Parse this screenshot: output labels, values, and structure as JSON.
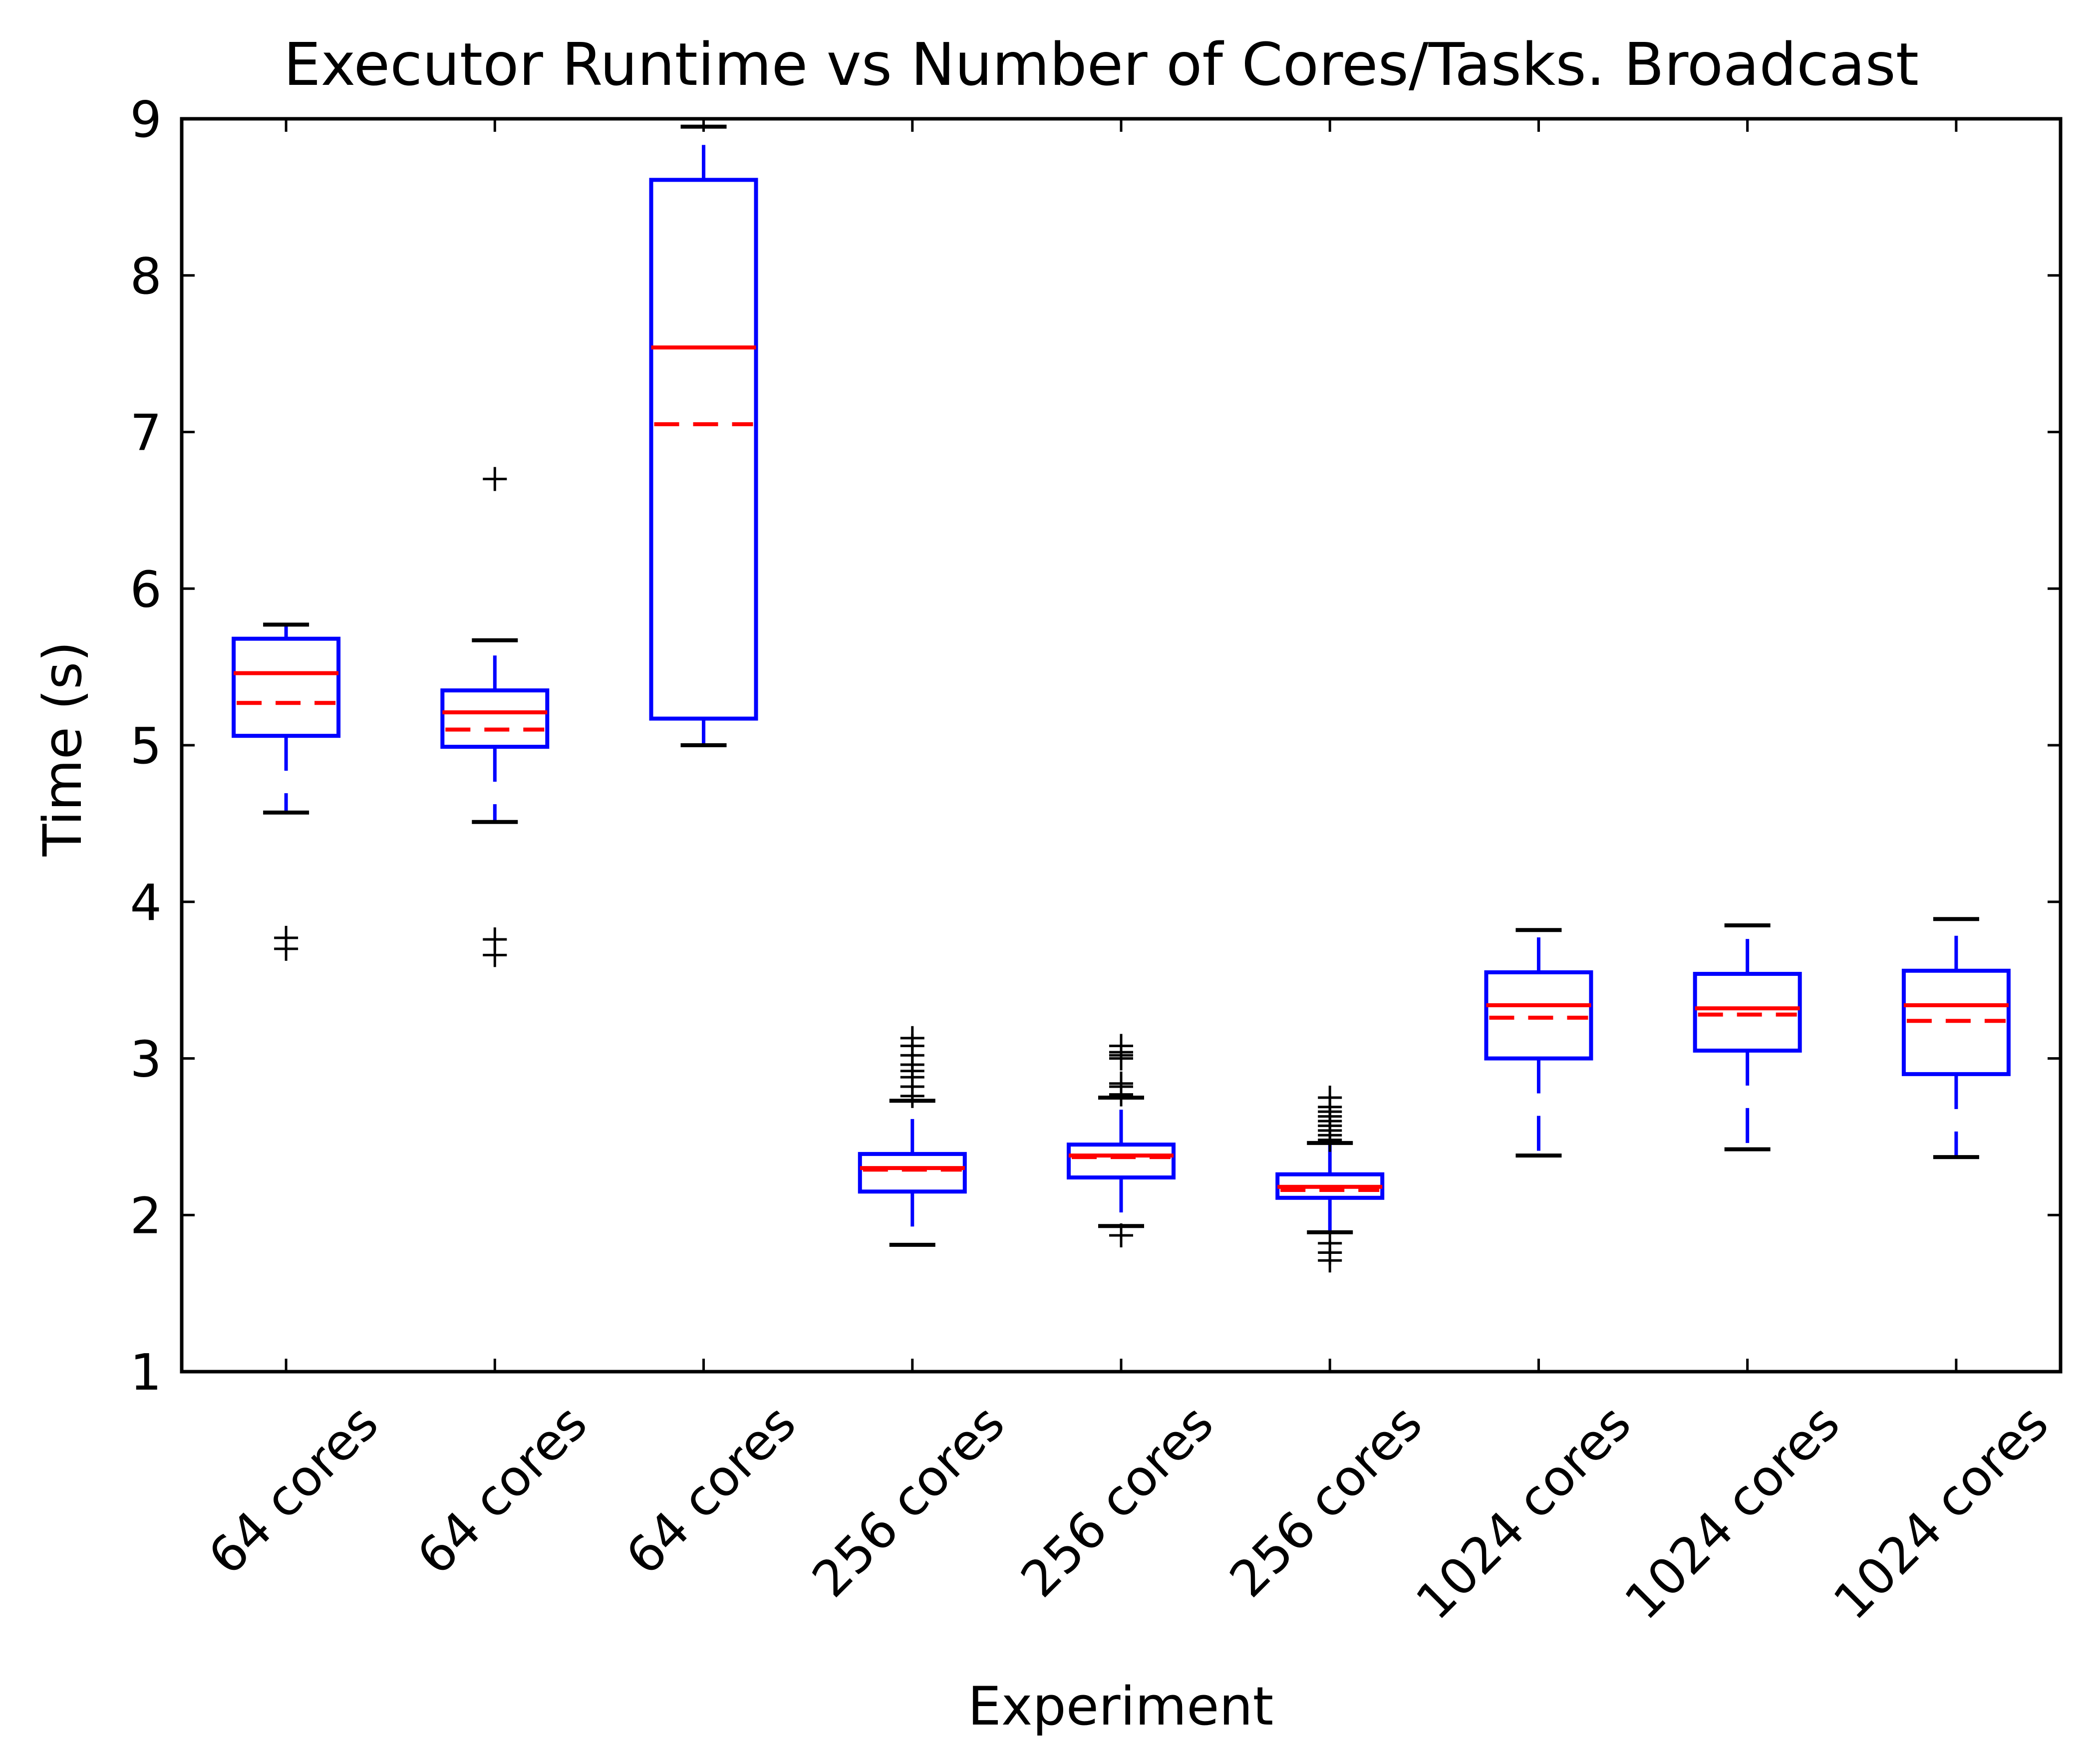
{
  "chart_data": {
    "type": "box",
    "title": "Executor Runtime vs Number of Cores/Tasks. Broadcast",
    "xlabel": "Experiment",
    "ylabel": "Time (s)",
    "ylim": [
      1,
      9
    ],
    "yticks": [
      "1",
      "2",
      "3",
      "4",
      "5",
      "6",
      "7",
      "8",
      "9"
    ],
    "grid": false,
    "colors": {
      "box": "#0000ff",
      "median": "#ff0000",
      "mean": "#ff0000",
      "caps": "#000000",
      "fliers": "#000000",
      "frame": "#000000"
    },
    "categories": [
      "64 cores",
      "64 cores",
      "64 cores",
      "256 cores",
      "256 cores",
      "256 cores",
      "1024 cores",
      "1024 cores",
      "1024 cores"
    ],
    "boxes": [
      {
        "whisker_low": 4.57,
        "q1": 5.06,
        "median": 5.46,
        "mean": 5.27,
        "q3": 5.68,
        "whisker_high": 5.77,
        "outliers": [
          3.7,
          3.77
        ]
      },
      {
        "whisker_low": 4.51,
        "q1": 4.99,
        "median": 5.21,
        "mean": 5.1,
        "q3": 5.35,
        "whisker_high": 5.67,
        "outliers": [
          3.66,
          3.76,
          6.7
        ]
      },
      {
        "whisker_low": 5.0,
        "q1": 5.17,
        "median": 7.54,
        "mean": 7.05,
        "q3": 8.61,
        "whisker_high": 8.95,
        "outliers": []
      },
      {
        "whisker_low": 1.81,
        "q1": 2.15,
        "median": 2.3,
        "mean": 2.29,
        "q3": 2.39,
        "whisker_high": 2.73,
        "outliers": [
          2.76,
          2.82,
          2.88,
          2.92,
          2.96,
          3.02,
          3.08,
          3.13
        ]
      },
      {
        "whisker_low": 1.93,
        "q1": 2.24,
        "median": 2.38,
        "mean": 2.37,
        "q3": 2.45,
        "whisker_high": 2.75,
        "outliers": [
          1.87,
          2.77,
          2.82,
          2.84,
          3.0,
          3.02,
          3.04,
          3.08
        ]
      },
      {
        "whisker_low": 1.89,
        "q1": 2.11,
        "median": 2.18,
        "mean": 2.16,
        "q3": 2.26,
        "whisker_high": 2.46,
        "outliers": [
          1.71,
          1.76,
          1.82,
          2.48,
          2.51,
          2.54,
          2.57,
          2.6,
          2.63,
          2.66,
          2.69,
          2.75
        ]
      },
      {
        "whisker_low": 2.38,
        "q1": 3.0,
        "median": 3.34,
        "mean": 3.26,
        "q3": 3.55,
        "whisker_high": 3.82,
        "outliers": []
      },
      {
        "whisker_low": 2.42,
        "q1": 3.05,
        "median": 3.32,
        "mean": 3.28,
        "q3": 3.54,
        "whisker_high": 3.85,
        "outliers": []
      },
      {
        "whisker_low": 2.37,
        "q1": 2.9,
        "median": 3.34,
        "mean": 3.24,
        "q3": 3.56,
        "whisker_high": 3.89,
        "outliers": []
      }
    ]
  }
}
